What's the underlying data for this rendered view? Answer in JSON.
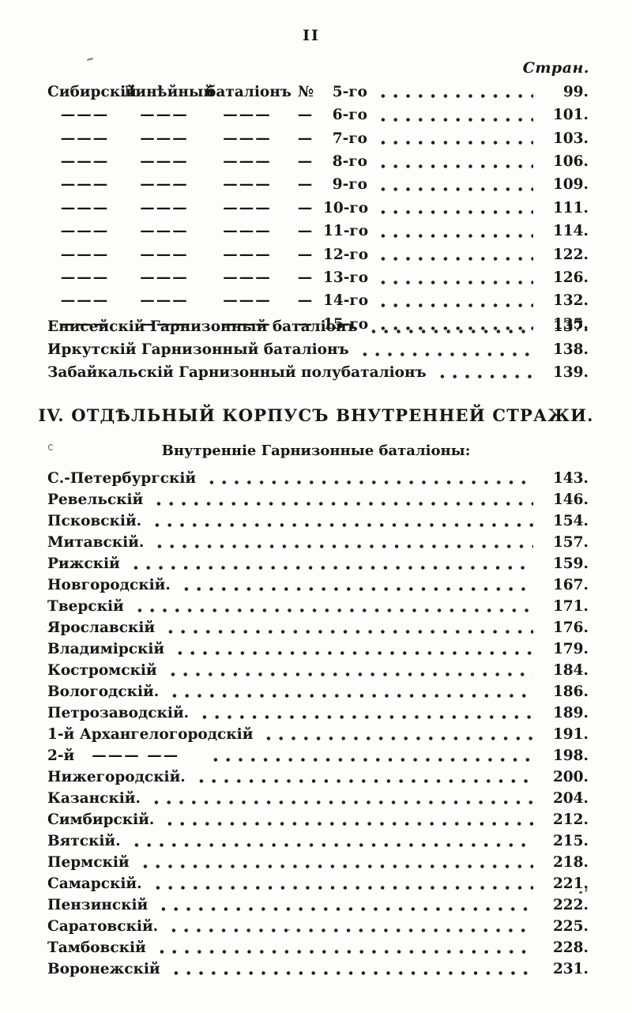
{
  "page": {
    "number": "II",
    "column_header": "Стран."
  },
  "section1": {
    "rows": [
      {
        "c1": "Сибирскій",
        "c2": "Линѣйный",
        "c3": "баталіонъ",
        "no": "№",
        "ord": "5-го",
        "page": "99."
      },
      {
        "c1": "———",
        "c2": "———",
        "c3": "———",
        "no": "—",
        "ord": "6-го",
        "page": "101."
      },
      {
        "c1": "———",
        "c2": "———",
        "c3": "———",
        "no": "—",
        "ord": "7-го",
        "page": "103."
      },
      {
        "c1": "———",
        "c2": "———",
        "c3": "———",
        "no": "—",
        "ord": "8-го",
        "page": "106."
      },
      {
        "c1": "———",
        "c2": "———",
        "c3": "———",
        "no": "—",
        "ord": "9-го",
        "page": "109."
      },
      {
        "c1": "———",
        "c2": "———",
        "c3": "———",
        "no": "—",
        "ord": "10-го",
        "page": "111."
      },
      {
        "c1": "———",
        "c2": "———",
        "c3": "———",
        "no": "—",
        "ord": "11-го",
        "page": "114."
      },
      {
        "c1": "———",
        "c2": "———",
        "c3": "———",
        "no": "—",
        "ord": "12-го",
        "page": "122."
      },
      {
        "c1": "———",
        "c2": "———",
        "c3": "———",
        "no": "—",
        "ord": "13-го",
        "page": "126."
      },
      {
        "c1": "———",
        "c2": "———",
        "c3": "———",
        "no": "—",
        "ord": "14-го",
        "page": "132."
      },
      {
        "c1": "———",
        "c2": "———",
        "c3": "———",
        "no": "—",
        "ord": "15-го",
        "page": "135."
      }
    ],
    "garrison_rows": [
      {
        "label": "Енисейскій Гарнизонный баталіонъ",
        "page": "137."
      },
      {
        "label": "Иркутскій Гарнизонный баталіонъ",
        "page": "138."
      },
      {
        "label": "Забайкальскій Гарнизонный полубаталіонъ",
        "page": "139."
      }
    ]
  },
  "section2": {
    "heading": "IV. ОТДѢЛЬНЫЙ КОРПУСЪ ВНУТРЕННЕЙ СТРАЖИ.",
    "subheading": "Внутренніе Гарнизонные баталіоны:",
    "rows": [
      {
        "label": "С.-Петербургскій",
        "page": "143."
      },
      {
        "label": "Ревельскій",
        "page": "146."
      },
      {
        "label": "Псковскій.",
        "page": "154."
      },
      {
        "label": "Митавскій.",
        "page": "157."
      },
      {
        "label": "Рижскій",
        "page": "159."
      },
      {
        "label": "Новгородскій.",
        "page": "167."
      },
      {
        "label": "Тверскій",
        "page": "171."
      },
      {
        "label": "Ярославскій",
        "page": "176."
      },
      {
        "label": "Владимірскій",
        "page": "179."
      },
      {
        "label": "Костромскій",
        "page": "184."
      },
      {
        "label": "Вологодскій.",
        "page": "186."
      },
      {
        "label": "Петрозаводскій.",
        "page": "189."
      },
      {
        "label": "1-й Архангелогородскій",
        "page": "191."
      },
      {
        "label": "2-й",
        "ditto": "——— ——",
        "page": "198."
      },
      {
        "label": "Нижегородскій.",
        "page": "200."
      },
      {
        "label": "Казанскій.",
        "page": "204."
      },
      {
        "label": "Симбирскій.",
        "page": "212."
      },
      {
        "label": "Вятскій.",
        "page": "215."
      },
      {
        "label": "Пермскій",
        "page": "218."
      },
      {
        "label": "Самарскій.",
        "page": "221."
      },
      {
        "label": "Пензинскій",
        "page": "222."
      },
      {
        "label": "Саратовскій.",
        "page": "225."
      },
      {
        "label": "Тамбовскій",
        "page": "228."
      },
      {
        "label": "Воронежскій",
        "page": "231."
      }
    ]
  }
}
